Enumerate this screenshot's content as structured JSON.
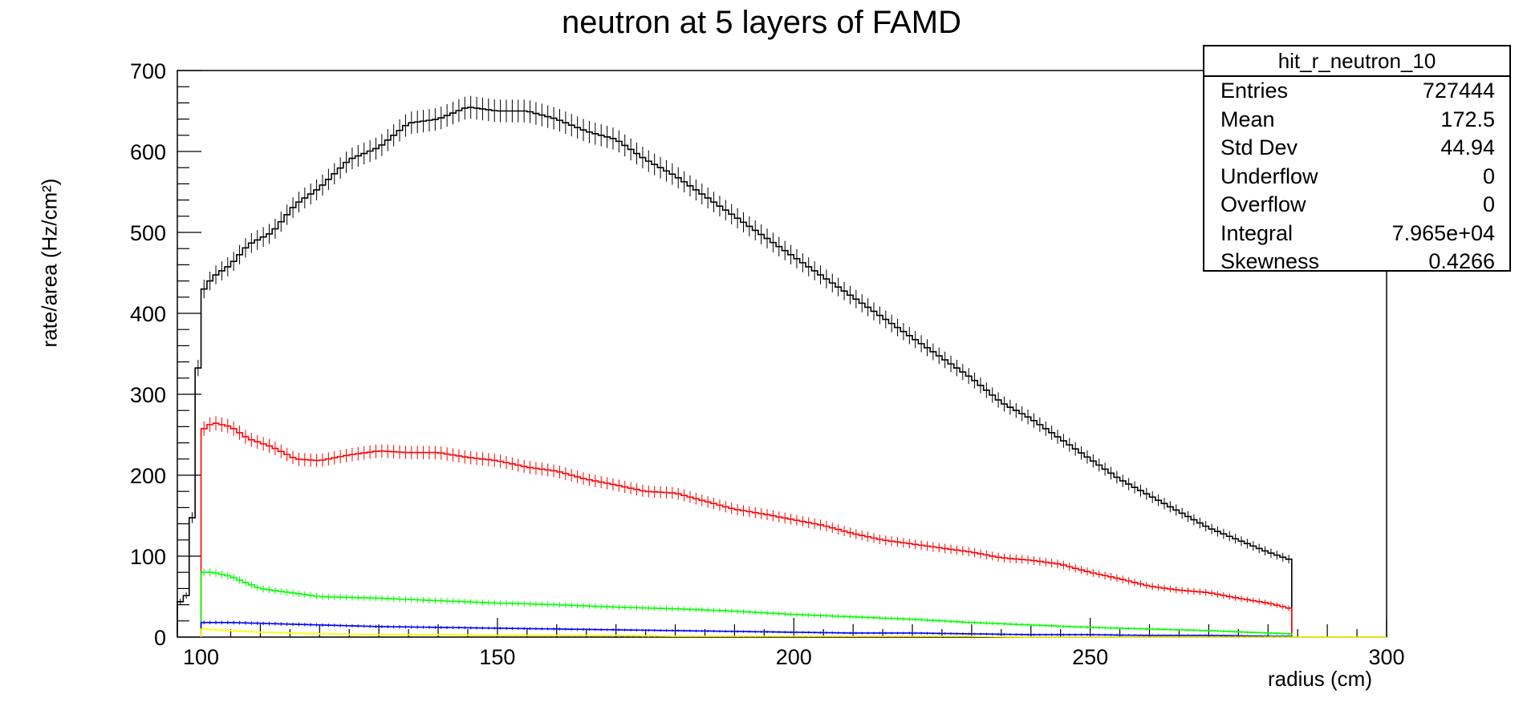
{
  "chart_data": {
    "type": "line",
    "title": "neutron at 5 layers of FAMD",
    "xlabel": "radius (cm)",
    "ylabel": "rate/area (Hz/cm²)",
    "xlim": [
      96,
      300
    ],
    "ylim": [
      0,
      700
    ],
    "x_ticks": [
      "100",
      "150",
      "200",
      "250",
      "300"
    ],
    "y_ticks": [
      "0",
      "100",
      "200",
      "300",
      "400",
      "500",
      "600",
      "700"
    ],
    "grid": false,
    "legend": "none",
    "stats_box": {
      "title": "hit_r_neutron_10",
      "rows": [
        {
          "label": "Entries",
          "value": "727444"
        },
        {
          "label": "Mean",
          "value": "172.5"
        },
        {
          "label": "Std Dev",
          "value": "44.94"
        },
        {
          "label": "Underflow",
          "value": "0"
        },
        {
          "label": "Overflow",
          "value": "0"
        },
        {
          "label": "Integral",
          "value": "7.965e+04"
        },
        {
          "label": "Skewness",
          "value": "0.4266"
        }
      ]
    },
    "series": [
      {
        "color": "#000000",
        "x": [
          96,
          98,
          100,
          102,
          105,
          108,
          112,
          116,
          120,
          125,
          130,
          135,
          140,
          145,
          150,
          155,
          160,
          165,
          170,
          175,
          180,
          185,
          190,
          195,
          200,
          205,
          210,
          215,
          220,
          225,
          230,
          235,
          240,
          245,
          250,
          255,
          260,
          265,
          270,
          275,
          280,
          284
        ],
        "values": [
          40,
          55,
          425,
          445,
          460,
          485,
          500,
          535,
          555,
          590,
          605,
          635,
          640,
          655,
          650,
          650,
          640,
          625,
          615,
          590,
          570,
          545,
          520,
          495,
          470,
          445,
          420,
          395,
          370,
          345,
          320,
          290,
          270,
          245,
          220,
          195,
          175,
          155,
          135,
          120,
          105,
          95
        ]
      },
      {
        "color": "#ff0000",
        "x": [
          100,
          102,
          105,
          108,
          112,
          116,
          120,
          125,
          130,
          135,
          140,
          145,
          150,
          155,
          160,
          165,
          170,
          175,
          180,
          185,
          190,
          195,
          200,
          205,
          210,
          215,
          220,
          225,
          230,
          235,
          240,
          245,
          250,
          255,
          260,
          265,
          270,
          275,
          280,
          284
        ],
        "values": [
          255,
          265,
          260,
          245,
          235,
          220,
          218,
          225,
          230,
          228,
          228,
          222,
          218,
          210,
          205,
          195,
          188,
          180,
          178,
          168,
          158,
          152,
          145,
          138,
          128,
          120,
          115,
          110,
          105,
          98,
          95,
          90,
          80,
          72,
          63,
          58,
          55,
          48,
          42,
          35
        ]
      },
      {
        "color": "#00ff00",
        "x": [
          100,
          102,
          105,
          110,
          120,
          130,
          140,
          150,
          160,
          170,
          180,
          190,
          200,
          210,
          220,
          230,
          240,
          250,
          260,
          270,
          280,
          284
        ],
        "values": [
          80,
          80,
          75,
          60,
          50,
          48,
          45,
          42,
          40,
          37,
          35,
          32,
          28,
          25,
          22,
          18,
          15,
          12,
          10,
          8,
          5,
          4
        ]
      },
      {
        "color": "#0000ff",
        "x": [
          100,
          105,
          110,
          120,
          130,
          140,
          150,
          160,
          170,
          180,
          190,
          200,
          210,
          220,
          230,
          240,
          250,
          260,
          270,
          280,
          284
        ],
        "values": [
          18,
          18,
          17,
          15,
          13,
          12,
          11,
          10,
          9,
          8,
          7,
          6,
          5,
          5,
          4,
          3,
          3,
          2,
          2,
          1,
          1
        ]
      },
      {
        "color": "#ffff00",
        "x": [
          100,
          105,
          110,
          120,
          130,
          140,
          150,
          160,
          170,
          180,
          190,
          200,
          210,
          220,
          230,
          240,
          250,
          260,
          270,
          280,
          300
        ],
        "values": [
          10,
          8,
          6,
          4,
          3,
          3,
          2,
          2,
          2,
          1,
          1,
          1,
          1,
          1,
          1,
          0,
          0,
          0,
          0,
          0,
          0
        ]
      }
    ]
  }
}
